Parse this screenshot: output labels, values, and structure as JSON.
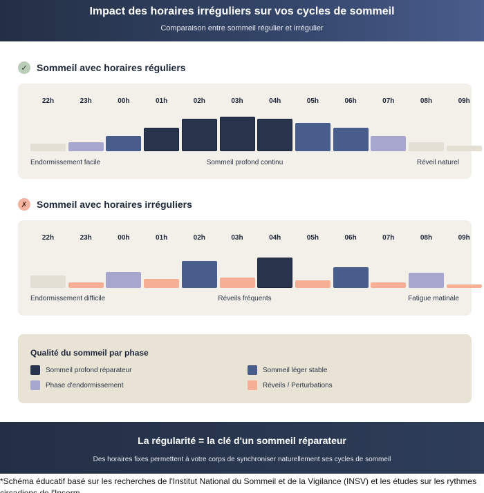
{
  "header": {
    "title": "Impact des horaires irréguliers sur vos cycles de sommeil",
    "subtitle": "Comparaison entre sommeil régulier et irrégulier"
  },
  "hours": [
    "22h",
    "23h",
    "00h",
    "01h",
    "02h",
    "03h",
    "04h",
    "05h",
    "06h",
    "07h",
    "08h",
    "09h"
  ],
  "regular": {
    "badge": "✓",
    "title": "Sommeil avec horaires réguliers",
    "bars": [
      {
        "phase": "neutral",
        "level": 0.21
      },
      {
        "phase": "sleep",
        "level": 0.25
      },
      {
        "phase": "light",
        "level": 0.42
      },
      {
        "phase": "deep",
        "level": 0.65
      },
      {
        "phase": "deep",
        "level": 0.9
      },
      {
        "phase": "deep",
        "level": 0.96
      },
      {
        "phase": "deep",
        "level": 0.9
      },
      {
        "phase": "light",
        "level": 0.79
      },
      {
        "phase": "light",
        "level": 0.65
      },
      {
        "phase": "sleep",
        "level": 0.42
      },
      {
        "phase": "neutral",
        "level": 0.25
      },
      {
        "phase": "neutral",
        "level": 0.15
      }
    ],
    "labels": [
      "Endormissement facile",
      "Sommeil profond continu",
      "Réveil naturel"
    ]
  },
  "irregular": {
    "badge": "✗",
    "title": "Sommeil avec horaires irréguliers",
    "bars": [
      {
        "phase": "neutral",
        "level": 0.35
      },
      {
        "phase": "wake",
        "level": 0.15
      },
      {
        "phase": "sleep",
        "level": 0.44
      },
      {
        "phase": "wake",
        "level": 0.25
      },
      {
        "phase": "light",
        "level": 0.75
      },
      {
        "phase": "wake",
        "level": 0.29
      },
      {
        "phase": "deep",
        "level": 0.85
      },
      {
        "phase": "wake",
        "level": 0.21
      },
      {
        "phase": "light",
        "level": 0.58
      },
      {
        "phase": "wake",
        "level": 0.15
      },
      {
        "phase": "sleep",
        "level": 0.42
      },
      {
        "phase": "wake",
        "level": 0.1
      }
    ],
    "labels": [
      "Endormissement difficile",
      "Réveils fréquents",
      "Fatigue matinale"
    ]
  },
  "legend": {
    "title": "Qualité du sommeil par phase",
    "items": [
      {
        "label": "Sommeil profond réparateur",
        "color": "#27344b"
      },
      {
        "label": "Sommeil léger stable",
        "color": "#485d8b"
      },
      {
        "label": "Phase d'endormissement",
        "color": "#a6a6cf"
      },
      {
        "label": "Réveils / Perturbations",
        "color": "#f6af95"
      }
    ]
  },
  "footer": {
    "title": "La régularité = la clé d'un sommeil réparateur",
    "text": "Des horaires fixes permettent à votre corps de synchroniser naturellement ses cycles de sommeil"
  },
  "note": "*Schéma éducatif basé sur les recherches de l'Institut National du Sommeil et de la Vigilance (INSV) et les études sur les rythmes circadiens de l'Inserm"
}
